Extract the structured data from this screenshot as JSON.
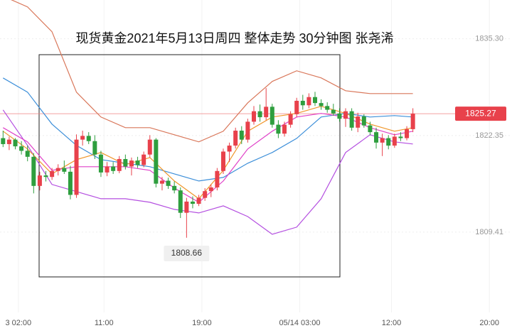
{
  "chart_data": {
    "type": "candlestick",
    "title": "现货黄金2021年5月13日周四 整体走势  30分钟图 张尧浠",
    "ylim": [
      1795.9,
      1840.5
    ],
    "yticks": [
      {
        "value": 1835.3,
        "label": "1835.30"
      },
      1822.35,
      1809.41
    ],
    "xlim": [
      -0.5,
      83.2
    ],
    "xticks": [
      {
        "value": 2.5,
        "label": "3 02:00"
      },
      {
        "value": 16.5,
        "label": "11:00"
      },
      {
        "value": 32.5,
        "label": "19:00"
      },
      {
        "value": 48.5,
        "label": "05/14 03:00"
      },
      {
        "value": 63.5,
        "label": "12:00"
      },
      {
        "value": 79.5,
        "label": "20:00"
      }
    ],
    "grid": true,
    "up_color": "#e8414b",
    "down_color": "#2e9e3e",
    "last_price": 1825.27,
    "low_annotation": 1808.66,
    "ohlc": [
      [
        1822.0,
        1823.0,
        1820.8,
        1821.2
      ],
      [
        1821.2,
        1822.2,
        1820.4,
        1821.8
      ],
      [
        1821.8,
        1822.0,
        1820.5,
        1820.9
      ],
      [
        1820.9,
        1821.6,
        1819.8,
        1820.3
      ],
      [
        1820.3,
        1821.0,
        1818.9,
        1819.5
      ],
      [
        1819.5,
        1820.0,
        1814.6,
        1815.6
      ],
      [
        1815.6,
        1817.5,
        1815.0,
        1817.0
      ],
      [
        1817.0,
        1817.6,
        1816.2,
        1816.8
      ],
      [
        1816.8,
        1818.0,
        1816.4,
        1817.6
      ],
      [
        1817.6,
        1818.5,
        1817.0,
        1818.0
      ],
      [
        1818.0,
        1819.0,
        1817.2,
        1817.5
      ],
      [
        1817.5,
        1818.3,
        1813.8,
        1814.4
      ],
      [
        1814.4,
        1822.5,
        1814.0,
        1821.8
      ],
      [
        1821.8,
        1823.0,
        1821.0,
        1822.3
      ],
      [
        1822.3,
        1822.8,
        1821.2,
        1821.6
      ],
      [
        1821.6,
        1822.4,
        1819.2,
        1819.8
      ],
      [
        1819.8,
        1820.3,
        1816.8,
        1817.4
      ],
      [
        1817.4,
        1818.8,
        1816.9,
        1818.2
      ],
      [
        1818.2,
        1818.8,
        1817.2,
        1817.6
      ],
      [
        1817.6,
        1819.6,
        1817.3,
        1819.2
      ],
      [
        1819.2,
        1819.8,
        1817.8,
        1818.2
      ],
      [
        1818.2,
        1819.4,
        1817.0,
        1819.0
      ],
      [
        1819.0,
        1819.5,
        1818.0,
        1818.4
      ],
      [
        1818.4,
        1820.2,
        1818.1,
        1819.8
      ],
      [
        1819.8,
        1822.4,
        1819.4,
        1821.8
      ],
      [
        1821.8,
        1822.0,
        1815.4,
        1815.9
      ],
      [
        1815.9,
        1816.8,
        1815.0,
        1816.3
      ],
      [
        1816.3,
        1816.7,
        1815.2,
        1815.6
      ],
      [
        1815.6,
        1816.2,
        1814.6,
        1815.0
      ],
      [
        1815.0,
        1815.4,
        1811.3,
        1812.0
      ],
      [
        1812.0,
        1814.0,
        1808.66,
        1813.5
      ],
      [
        1813.5,
        1814.2,
        1812.6,
        1813.2
      ],
      [
        1813.2,
        1814.4,
        1812.9,
        1814.0
      ],
      [
        1814.0,
        1815.3,
        1813.6,
        1814.9
      ],
      [
        1814.9,
        1815.8,
        1814.1,
        1815.4
      ],
      [
        1815.4,
        1818.0,
        1815.0,
        1817.6
      ],
      [
        1817.6,
        1820.6,
        1817.2,
        1820.2
      ],
      [
        1820.2,
        1821.4,
        1818.8,
        1821.0
      ],
      [
        1821.0,
        1823.4,
        1820.6,
        1823.0
      ],
      [
        1823.0,
        1823.6,
        1821.2,
        1821.8
      ],
      [
        1821.8,
        1824.6,
        1821.4,
        1824.2
      ],
      [
        1824.2,
        1826.3,
        1823.8,
        1825.6
      ],
      [
        1825.6,
        1826.5,
        1824.2,
        1824.8
      ],
      [
        1824.8,
        1828.7,
        1824.4,
        1826.2
      ],
      [
        1826.2,
        1826.6,
        1823.4,
        1823.8
      ],
      [
        1823.8,
        1824.4,
        1822.0,
        1822.6
      ],
      [
        1822.6,
        1824.2,
        1822.2,
        1823.8
      ],
      [
        1823.8,
        1825.6,
        1823.4,
        1825.2
      ],
      [
        1825.2,
        1827.4,
        1824.8,
        1827.0
      ],
      [
        1827.0,
        1827.8,
        1825.8,
        1826.4
      ],
      [
        1826.4,
        1828.0,
        1826.0,
        1827.5
      ],
      [
        1827.5,
        1828.2,
        1826.3,
        1826.7
      ],
      [
        1826.7,
        1827.2,
        1825.8,
        1826.3
      ],
      [
        1826.3,
        1826.8,
        1825.4,
        1825.8
      ],
      [
        1825.8,
        1826.6,
        1825.0,
        1825.3
      ],
      [
        1825.3,
        1826.0,
        1824.2,
        1824.6
      ],
      [
        1824.6,
        1826.0,
        1823.5,
        1825.6
      ],
      [
        1825.6,
        1826.0,
        1823.0,
        1823.4
      ],
      [
        1823.4,
        1825.4,
        1822.8,
        1824.9
      ],
      [
        1824.9,
        1825.2,
        1823.4,
        1823.7
      ],
      [
        1823.7,
        1824.2,
        1822.4,
        1822.8
      ],
      [
        1822.8,
        1823.4,
        1820.6,
        1821.4
      ],
      [
        1821.4,
        1822.6,
        1819.6,
        1822.0
      ],
      [
        1822.0,
        1822.4,
        1820.5,
        1821.0
      ],
      [
        1821.0,
        1822.6,
        1820.7,
        1822.2
      ],
      [
        1822.2,
        1822.8,
        1821.6,
        1822.0
      ],
      [
        1822.0,
        1823.6,
        1821.7,
        1823.2
      ],
      [
        1823.2,
        1826.0,
        1822.8,
        1825.27
      ]
    ],
    "lines": [
      {
        "color": "#d9775a",
        "x": [
          0,
          4,
          8,
          12,
          16,
          20,
          24,
          28,
          32,
          36,
          40,
          44,
          48,
          52,
          56,
          60,
          64,
          67
        ],
        "values": [
          1841.01,
          1839.58,
          1836.25,
          1828.16,
          1824.83,
          1823.4,
          1823.4,
          1822.45,
          1821.5,
          1822.93,
          1826.73,
          1829.59,
          1831.02,
          1830.07,
          1828.35,
          1827.97,
          1827.97,
          1827.97
        ]
      },
      {
        "color": "#b44fe0",
        "x": [
          0,
          4,
          8,
          12,
          16,
          20,
          24,
          28,
          32,
          36,
          40,
          44,
          48,
          52,
          56,
          60,
          64,
          67
        ],
        "values": [
          1825.78,
          1821.02,
          1815.79,
          1814.84,
          1813.88,
          1813.88,
          1813.41,
          1812.46,
          1811.98,
          1812.93,
          1811.5,
          1809.12,
          1810.08,
          1813.88,
          1820.07,
          1822.45,
          1821.5,
          1821.21
        ]
      },
      {
        "color": "#3d8fd9",
        "x": [
          0,
          4,
          8,
          12,
          16,
          20,
          24,
          28,
          32,
          36,
          40,
          44,
          48,
          52,
          56,
          60,
          64,
          67
        ],
        "values": [
          1830.06,
          1828.16,
          1823.88,
          1821.02,
          1819.12,
          1818.64,
          1818.17,
          1817.21,
          1816.26,
          1816.74,
          1818.64,
          1820.07,
          1821.97,
          1824.83,
          1825.31,
          1824.83,
          1825.02,
          1824.83
        ]
      },
      {
        "color": "#f0962a",
        "x": [
          0,
          4,
          8,
          12,
          16,
          20,
          24,
          28,
          32,
          36,
          40,
          44,
          48,
          52,
          56,
          60,
          64,
          67
        ],
        "values": [
          1822.93,
          1820.55,
          1817.21,
          1819.12,
          1820.07,
          1818.45,
          1819.4,
          1816.26,
          1813.88,
          1817.69,
          1822.93,
          1824.83,
          1825.31,
          1826.26,
          1825.31,
          1823.88,
          1822.93,
          1823.4
        ]
      },
      {
        "color": "#e040c8",
        "x": [
          0,
          4,
          8,
          12,
          16,
          20,
          24,
          28,
          32,
          36,
          40,
          44,
          48,
          52,
          56,
          60,
          64,
          67
        ],
        "values": [
          1823.4,
          1821.5,
          1817.69,
          1818.17,
          1818.17,
          1818.17,
          1817.69,
          1815.31,
          1813.41,
          1816.26,
          1820.55,
          1822.93,
          1824.83,
          1825.31,
          1824.83,
          1823.4,
          1822.45,
          1822.93
        ]
      }
    ]
  }
}
